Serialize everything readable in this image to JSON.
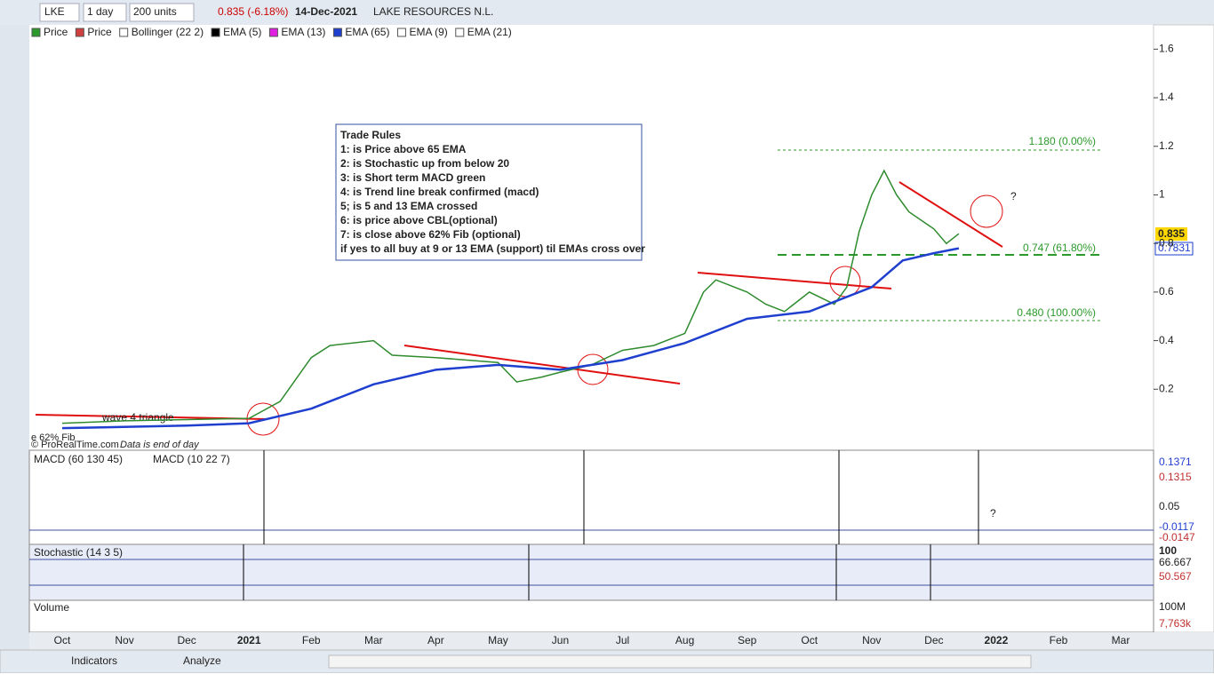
{
  "toolbar": {
    "symbol": "LKE",
    "period": "1 day",
    "units": "200 units",
    "quote": "0.835 (-6.18%)",
    "date": "14-Dec-2021",
    "name": "LAKE RESOURCES N.L."
  },
  "legend": [
    "Price",
    "Price",
    "Bollinger (22 2)",
    "EMA (5)",
    "EMA (13)",
    "EMA (65)",
    "EMA (9)",
    "EMA (21)"
  ],
  "chart_data": {
    "type": "line",
    "x": [
      0,
      1,
      2,
      3,
      3.5,
      4,
      4.3,
      5,
      5.3,
      6,
      6.5,
      7,
      7.3,
      7.7,
      8,
      8.5,
      9,
      9.5,
      10,
      10.3,
      10.5,
      11,
      11.3,
      11.6,
      12,
      12.4,
      12.6,
      12.8,
      13,
      13.2,
      13.4,
      13.6,
      14,
      14.2,
      14.4
    ],
    "series": [
      {
        "name": "Price",
        "color": "#2e8b2e",
        "values": [
          0.06,
          0.07,
          0.075,
          0.08,
          0.15,
          0.33,
          0.38,
          0.4,
          0.34,
          0.33,
          0.32,
          0.31,
          0.23,
          0.25,
          0.27,
          0.3,
          0.36,
          0.38,
          0.43,
          0.6,
          0.65,
          0.6,
          0.55,
          0.52,
          0.6,
          0.55,
          0.62,
          0.85,
          1.0,
          1.1,
          1.0,
          0.93,
          0.86,
          0.8,
          0.84
        ]
      },
      {
        "name": "EMA (65)",
        "color": "#1f3fcf",
        "x": [
          0,
          2,
          3,
          4,
          5,
          6,
          7,
          8,
          9,
          10,
          11,
          12,
          13,
          13.5,
          14,
          14.4
        ],
        "values": [
          0.04,
          0.05,
          0.06,
          0.12,
          0.22,
          0.28,
          0.3,
          0.28,
          0.32,
          0.39,
          0.49,
          0.52,
          0.62,
          0.73,
          0.76,
          0.78
        ]
      }
    ],
    "categories": [
      "Oct",
      "Nov",
      "Dec",
      "2021",
      "Feb",
      "Mar",
      "Apr",
      "May",
      "Jun",
      "Jul",
      "Aug",
      "Sep",
      "Oct",
      "Nov",
      "Dec",
      "2022",
      "Feb",
      "Mar"
    ],
    "ylim": [
      0,
      1.7
    ],
    "yticks": [
      0.2,
      0.4,
      0.6,
      0.8,
      1,
      1.2,
      1.4,
      1.6
    ],
    "price_labels": [
      "0.835",
      "0.7831"
    ],
    "fib": [
      "1.180 (0.00%)",
      "0.747 (61.80%)",
      "0.480 (100.00%)"
    ],
    "annotations": [
      "?",
      "?",
      "wave 4 triangle",
      "e 62% Fib",
      "© ProRealTime.com",
      "Data is end of day"
    ],
    "trade_rules": [
      "Trade Rules",
      "1: is Price above 65 EMA",
      "2: is Stochastic up from below 20",
      "3: is Short term MACD green",
      "4: is Trend line break confirmed (macd)",
      "5; is 5 and 13 EMA crossed",
      "6: is price above CBL(optional)",
      "7: is close above 62% Fib (optional)",
      "if yes to all buy at 9 or 13 EMA (support) til EMAs cross over"
    ]
  },
  "macd": {
    "labels": [
      "MACD (60 130 45)",
      "MACD (10 22 7)"
    ],
    "ticks": [
      "0.1371",
      "0.1315",
      "0.05",
      "-0.0117",
      "-0.0147"
    ]
  },
  "stochastic": {
    "label": "Stochastic (14 3 5)",
    "ticks": [
      "100",
      "66.667",
      "50.567"
    ]
  },
  "volume": {
    "label": "Volume",
    "ticks": [
      "100M",
      "7,763k"
    ]
  },
  "bottom": {
    "indicators": "Indicators",
    "analyze": "Analyze"
  }
}
